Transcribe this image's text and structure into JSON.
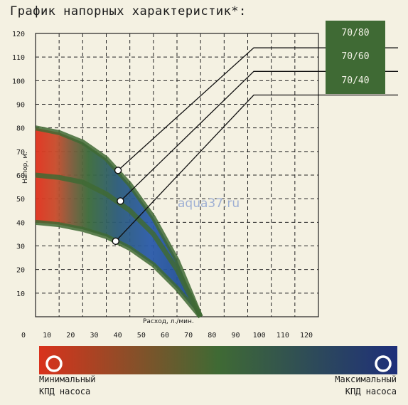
{
  "title": "График напорных характеристик*:",
  "watermark": "aqua37.ru",
  "legend": {
    "min_line1": "Минимальный",
    "min_line2": "КПД насоса",
    "max_line1": "Максимальный",
    "max_line2": "КПД насоса",
    "gradient_colors": [
      "#d9321c",
      "#3f6a34",
      "#1e2f7a"
    ]
  },
  "chart_data": {
    "type": "line",
    "xlabel": "Расход, л./мин.",
    "ylabel": "Напор, м.",
    "xlim": [
      0,
      120
    ],
    "ylim": [
      0,
      120
    ],
    "x_ticks": [
      "0",
      "10",
      "20",
      "30",
      "40",
      "50",
      "60",
      "70",
      "80",
      "90",
      "100",
      "110",
      "120"
    ],
    "y_ticks": [
      "10",
      "20",
      "30",
      "40",
      "50",
      "60",
      "70",
      "80",
      "90",
      "100",
      "110",
      "120"
    ],
    "grid": true,
    "series": [
      {
        "name": "70/80",
        "label_y": 110,
        "point": [
          35,
          62
        ],
        "values": [
          [
            0,
            80
          ],
          [
            10,
            78
          ],
          [
            20,
            74
          ],
          [
            30,
            67
          ],
          [
            40,
            56
          ],
          [
            50,
            42
          ],
          [
            60,
            24
          ],
          [
            70,
            0
          ]
        ]
      },
      {
        "name": "70/60",
        "label_y": 100,
        "point": [
          36,
          49
        ],
        "values": [
          [
            0,
            60
          ],
          [
            10,
            59
          ],
          [
            20,
            57
          ],
          [
            30,
            52
          ],
          [
            40,
            45
          ],
          [
            50,
            35
          ],
          [
            60,
            20
          ],
          [
            70,
            0
          ]
        ]
      },
      {
        "name": "70/40",
        "label_y": 90,
        "point": [
          34,
          32
        ],
        "values": [
          [
            0,
            40
          ],
          [
            10,
            39
          ],
          [
            20,
            37
          ],
          [
            30,
            34
          ],
          [
            40,
            29
          ],
          [
            50,
            22
          ],
          [
            60,
            12
          ],
          [
            70,
            0
          ]
        ]
      }
    ]
  }
}
